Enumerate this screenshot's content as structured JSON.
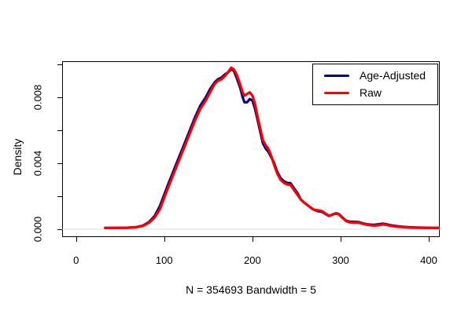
{
  "figure": {
    "background": "#ffffff",
    "axis_color": "#000000",
    "text_color": "#000000"
  },
  "chart_data": {
    "type": "line",
    "title": "",
    "xlabel": "N = 354693   Bandwidth = 5",
    "ylabel": "Density",
    "n": 354693,
    "bandwidth": 5,
    "xlim": [
      -16,
      412
    ],
    "ylim": [
      0,
      0.0102
    ],
    "x_ticks": [
      0,
      100,
      200,
      300,
      400
    ],
    "x_tick_labels": [
      "0",
      "100",
      "200",
      "300",
      "400"
    ],
    "y_ticks": [
      0,
      0.002,
      0.004,
      0.006,
      0.008,
      0.01
    ],
    "y_tick_labels": [
      "0.000",
      "",
      "0.004",
      "",
      "0.008",
      ""
    ],
    "grid": false,
    "zero_line_color": "#DCDCDC",
    "legend_position": "topright",
    "series": [
      {
        "name": "Age-Adjusted",
        "color": "#00008B",
        "points": [
          [
            33,
            8e-05
          ],
          [
            45,
            8e-05
          ],
          [
            58,
            9e-05
          ],
          [
            68,
            0.00013
          ],
          [
            76,
            0.00022
          ],
          [
            83,
            0.00045
          ],
          [
            89,
            0.0008
          ],
          [
            95,
            0.0014
          ],
          [
            100,
            0.0021
          ],
          [
            105,
            0.0028
          ],
          [
            111,
            0.0036
          ],
          [
            117,
            0.0044
          ],
          [
            123,
            0.0052
          ],
          [
            129,
            0.006
          ],
          [
            135,
            0.0068
          ],
          [
            141,
            0.0075
          ],
          [
            147,
            0.008
          ],
          [
            152,
            0.0085
          ],
          [
            157,
            0.0089
          ],
          [
            161,
            0.0091
          ],
          [
            165,
            0.0092
          ],
          [
            169,
            0.0094
          ],
          [
            172,
            0.0095
          ],
          [
            176,
            0.0097
          ],
          [
            179,
            0.0096
          ],
          [
            182,
            0.0092
          ],
          [
            186,
            0.0086
          ],
          [
            189,
            0.008
          ],
          [
            191,
            0.0077
          ],
          [
            194,
            0.0077
          ],
          [
            197,
            0.0079
          ],
          [
            200,
            0.0078
          ],
          [
            203,
            0.0073
          ],
          [
            206,
            0.0066
          ],
          [
            209,
            0.0059
          ],
          [
            212,
            0.0052
          ],
          [
            215,
            0.0049
          ],
          [
            218,
            0.0047
          ],
          [
            221,
            0.0044
          ],
          [
            224,
            0.0041
          ],
          [
            228,
            0.0035
          ],
          [
            232,
            0.0031
          ],
          [
            236,
            0.0029
          ],
          [
            240,
            0.0028
          ],
          [
            243,
            0.0028
          ],
          [
            247,
            0.0025
          ],
          [
            251,
            0.0022
          ],
          [
            255,
            0.0018
          ],
          [
            259,
            0.0016
          ],
          [
            264,
            0.0014
          ],
          [
            269,
            0.0012
          ],
          [
            274,
            0.0011
          ],
          [
            279,
            0.00105
          ],
          [
            283,
            0.00092
          ],
          [
            287,
            0.0008
          ],
          [
            291,
            0.0009
          ],
          [
            295,
            0.00097
          ],
          [
            298,
            0.00092
          ],
          [
            302,
            0.00072
          ],
          [
            306,
            0.00052
          ],
          [
            310,
            0.00046
          ],
          [
            315,
            0.00045
          ],
          [
            320,
            0.00044
          ],
          [
            325,
            0.00036
          ],
          [
            331,
            0.00029
          ],
          [
            337,
            0.00026
          ],
          [
            343,
            0.0003
          ],
          [
            348,
            0.00034
          ],
          [
            352,
            0.0003
          ],
          [
            357,
            0.00024
          ],
          [
            363,
            0.00019
          ],
          [
            370,
            0.00015
          ],
          [
            378,
            0.00012
          ],
          [
            387,
            0.0001
          ],
          [
            396,
            9e-05
          ],
          [
            405,
            8e-05
          ],
          [
            412,
            8e-05
          ]
        ]
      },
      {
        "name": "Raw",
        "color": "#FF0000",
        "points": [
          [
            33,
            8e-05
          ],
          [
            45,
            8e-05
          ],
          [
            58,
            9e-05
          ],
          [
            68,
            0.00012
          ],
          [
            76,
            0.0002
          ],
          [
            83,
            0.0004
          ],
          [
            89,
            0.0007
          ],
          [
            95,
            0.0012
          ],
          [
            100,
            0.0019
          ],
          [
            105,
            0.0026
          ],
          [
            111,
            0.0034
          ],
          [
            117,
            0.0042
          ],
          [
            123,
            0.005
          ],
          [
            129,
            0.0058
          ],
          [
            135,
            0.0066
          ],
          [
            141,
            0.0073
          ],
          [
            147,
            0.0078
          ],
          [
            152,
            0.0083
          ],
          [
            157,
            0.0088
          ],
          [
            161,
            0.009
          ],
          [
            165,
            0.0091
          ],
          [
            169,
            0.0093
          ],
          [
            172,
            0.0095
          ],
          [
            176,
            0.0098
          ],
          [
            179,
            0.0097
          ],
          [
            182,
            0.0094
          ],
          [
            186,
            0.0088
          ],
          [
            189,
            0.0083
          ],
          [
            191,
            0.0081
          ],
          [
            194,
            0.0082
          ],
          [
            197,
            0.0083
          ],
          [
            200,
            0.0081
          ],
          [
            203,
            0.0076
          ],
          [
            206,
            0.0068
          ],
          [
            209,
            0.0061
          ],
          [
            212,
            0.0054
          ],
          [
            215,
            0.0051
          ],
          [
            218,
            0.0049
          ],
          [
            221,
            0.0045
          ],
          [
            224,
            0.004
          ],
          [
            228,
            0.0034
          ],
          [
            232,
            0.003
          ],
          [
            236,
            0.0028
          ],
          [
            240,
            0.0027
          ],
          [
            243,
            0.0027
          ],
          [
            247,
            0.0024
          ],
          [
            251,
            0.0021
          ],
          [
            255,
            0.0018
          ],
          [
            259,
            0.0016
          ],
          [
            264,
            0.0014
          ],
          [
            269,
            0.0012
          ],
          [
            274,
            0.00115
          ],
          [
            279,
            0.0011
          ],
          [
            283,
            0.00095
          ],
          [
            287,
            0.00081
          ],
          [
            291,
            0.00088
          ],
          [
            295,
            0.00095
          ],
          [
            298,
            0.0009
          ],
          [
            302,
            0.0007
          ],
          [
            306,
            0.0005
          ],
          [
            310,
            0.00042
          ],
          [
            315,
            0.0004
          ],
          [
            320,
            0.0004
          ],
          [
            325,
            0.00033
          ],
          [
            331,
            0.00026
          ],
          [
            337,
            0.00022
          ],
          [
            343,
            0.00024
          ],
          [
            348,
            0.00029
          ],
          [
            352,
            0.00026
          ],
          [
            357,
            0.0002
          ],
          [
            363,
            0.00016
          ],
          [
            370,
            0.00013
          ],
          [
            378,
            0.0001
          ],
          [
            387,
            9e-05
          ],
          [
            396,
            8e-05
          ],
          [
            405,
            8e-05
          ],
          [
            412,
            8e-05
          ]
        ]
      }
    ]
  },
  "legend": {
    "items": [
      {
        "label": "Age-Adjusted",
        "color": "#00008B"
      },
      {
        "label": "Raw",
        "color": "#FF0000"
      }
    ]
  }
}
